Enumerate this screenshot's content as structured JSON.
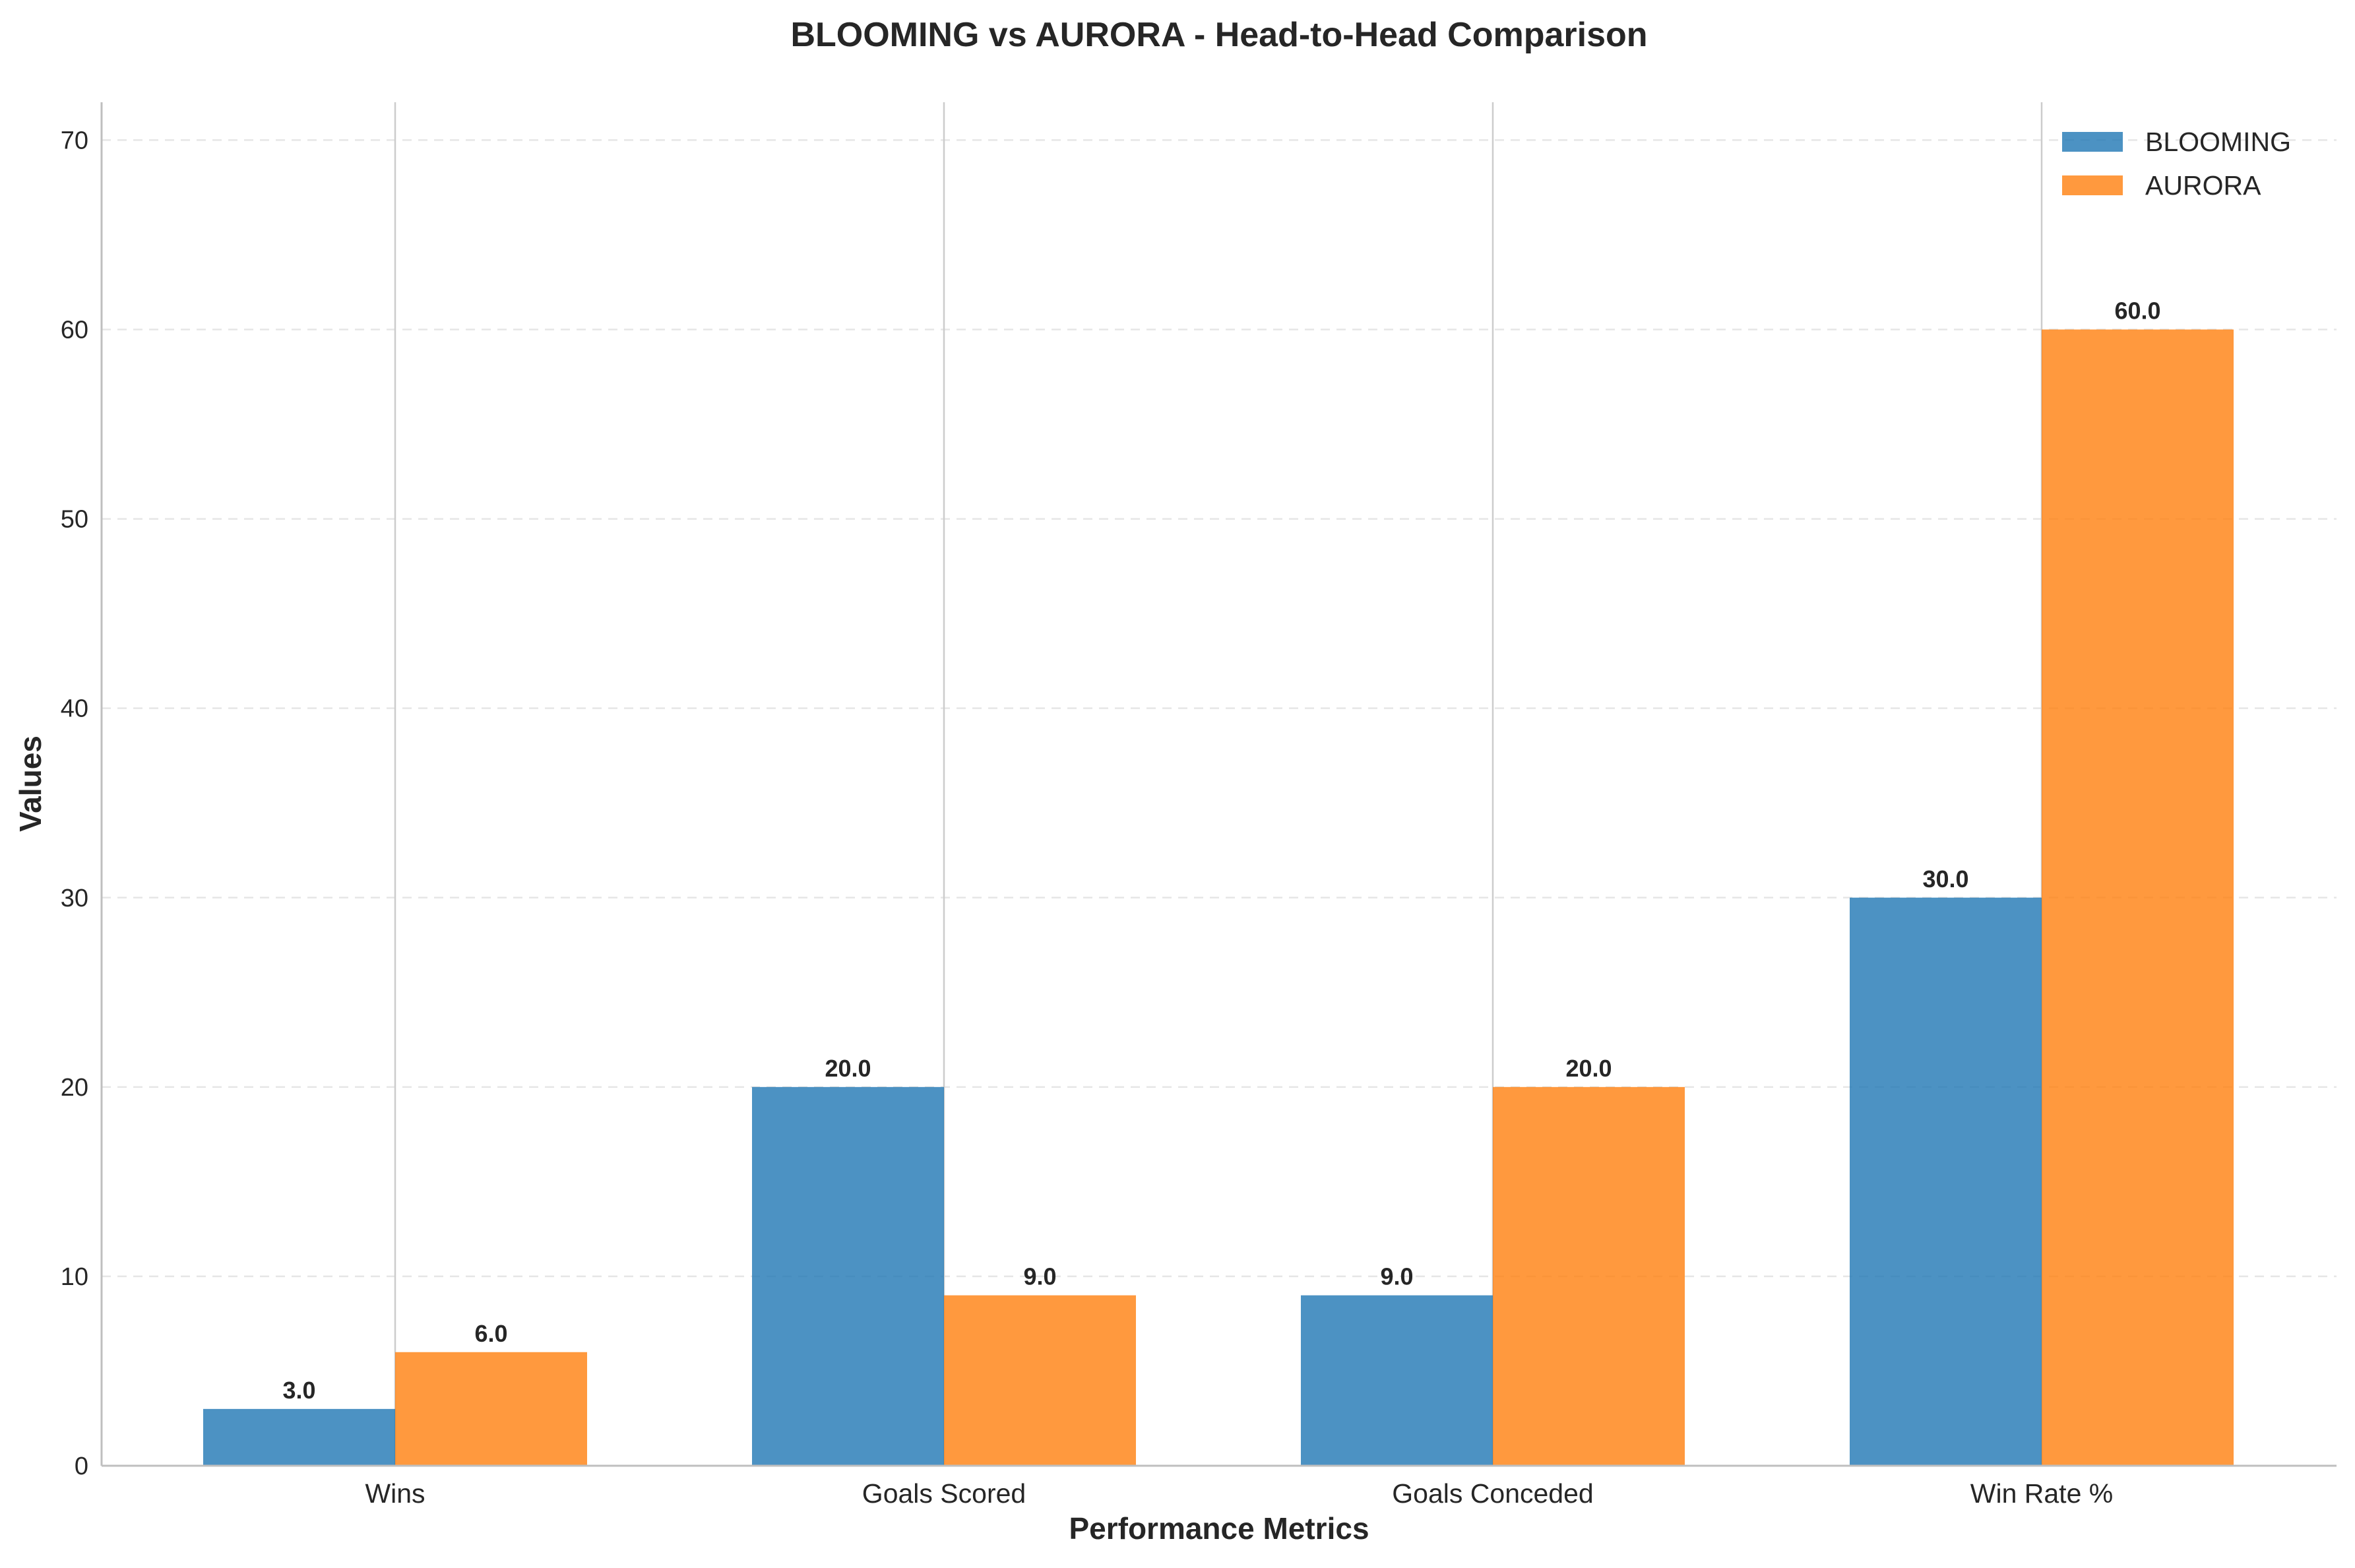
{
  "chart_data": {
    "type": "bar",
    "title": "BLOOMING vs AURORA - Head-to-Head Comparison",
    "xlabel": "Performance Metrics",
    "ylabel": "Values",
    "categories": [
      "Wins",
      "Goals Scored",
      "Goals Conceded",
      "Win Rate %"
    ],
    "series": [
      {
        "name": "BLOOMING",
        "values": [
          3.0,
          20.0,
          9.0,
          30.0
        ],
        "value_labels": [
          "3.0",
          "20.0",
          "9.0",
          "30.0"
        ],
        "color": "#1f77b4"
      },
      {
        "name": "AURORA",
        "values": [
          6.0,
          9.0,
          20.0,
          60.0
        ],
        "value_labels": [
          "6.0",
          "9.0",
          "20.0",
          "60.0"
        ],
        "color": "#ff7f0e"
      }
    ],
    "ylim": [
      0,
      72
    ],
    "yticks": [
      0,
      10,
      20,
      30,
      40,
      50,
      60,
      70
    ],
    "ytick_labels": [
      "0",
      "10",
      "20",
      "30",
      "40",
      "50",
      "60",
      "70"
    ],
    "grid": "y-dashed",
    "legend_position": "top-right"
  }
}
